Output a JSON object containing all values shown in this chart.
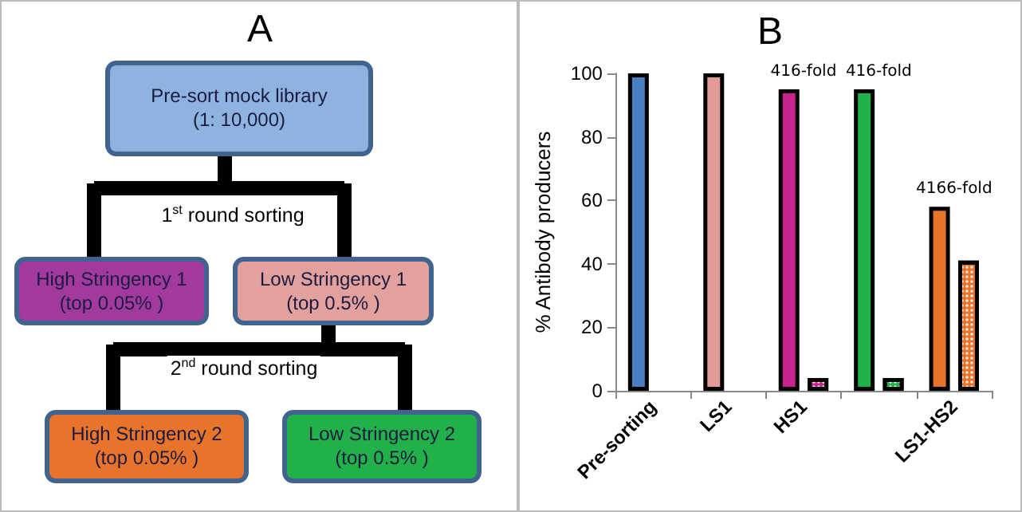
{
  "chart_data": [
    {
      "type": "other",
      "title": "A",
      "annotations": [
        "Pre-sort mock library\n(1: 10,000)",
        "High Stringency 1\n(top 0.05% )",
        "Low Stringency 1\n(top 0.5% )",
        "High Stringency 2\n(top 0.05% )",
        "Low Stringency 2\n(top 0.5% )",
        "1$^{st}$ round sorting",
        "2$^{nd}$ round sorting"
      ]
    },
    {
      "type": "bar",
      "title": "B",
      "ylabel": "% Antibody producers",
      "categories": [
        "Pre-sorting",
        "LS1",
        "HS1",
        null,
        "LS1-HS2"
      ],
      "series": [
        {
          "colors": [
            "#4a7fc1",
            "#e29a98",
            "#c8248f",
            "#22b04b",
            "#e8732a"
          ],
          "values": [
            100,
            100,
            95,
            95,
            58
          ]
        },
        {
          "colors": [
            "#4a7fc1",
            "#e29a98",
            "#c8248f",
            "#22b04b",
            "#e8732a"
          ],
          "values": [
            null,
            null,
            4,
            4,
            41
          ]
        }
      ],
      "annotations": [
        {
          "text": "416-fold",
          "x": "HS1",
          "y": 95
        },
        {
          "text": "416-fold",
          "y": 95
        },
        {
          "text": "4166-fold",
          "x": "LS1-HS2",
          "y": 58
        }
      ],
      "ylim": [
        0,
        100
      ],
      "yticks": [
        0,
        20,
        40,
        60,
        80,
        100
      ],
      "grid": false
    }
  ]
}
